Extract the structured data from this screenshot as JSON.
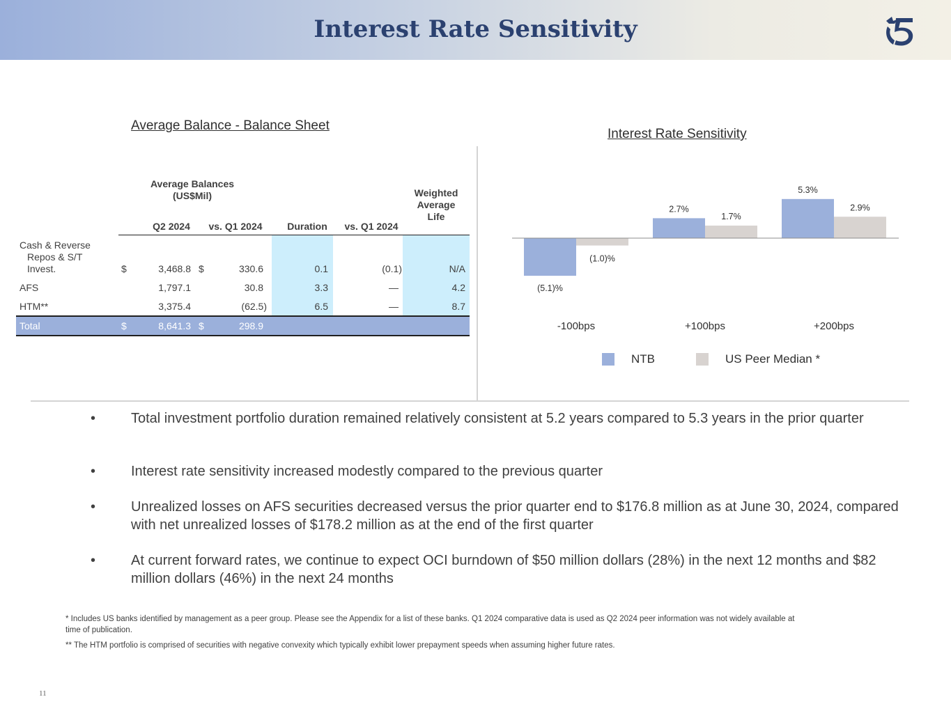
{
  "header": {
    "title": "Interest Rate Sensitivity",
    "logo_icon": "bank-logo-icon"
  },
  "left_section": {
    "title": "Average Balance - Balance Sheet"
  },
  "table": {
    "header_group": "Average Balances (US$Mil)",
    "col_q2": "Q2 2024",
    "col_vs_q1": "vs. Q1 2024",
    "col_duration": "Duration",
    "col_dur_vs_q1": "vs. Q1 2024",
    "col_wal": "Weighted Average Life",
    "rows": [
      {
        "label": "Cash & Reverse Repos & S/T Invest.",
        "cur1": "$",
        "q2": "3,468.8",
        "cur2": "$",
        "vs_q1": "330.6",
        "duration": "0.1",
        "dur_vs_q1": "(0.1)",
        "wal": "N/A"
      },
      {
        "label": "AFS",
        "cur1": "",
        "q2": "1,797.1",
        "cur2": "",
        "vs_q1": "30.8",
        "duration": "3.3",
        "dur_vs_q1": "—",
        "wal": "4.2"
      },
      {
        "label": "HTM**",
        "cur1": "",
        "q2": "3,375.4",
        "cur2": "",
        "vs_q1": "(62.5)",
        "duration": "6.5",
        "dur_vs_q1": "—",
        "wal": "8.7"
      }
    ],
    "total": {
      "label": "Total",
      "cur1": "$",
      "q2": "8,641.3",
      "cur2": "$",
      "vs_q1": "298.9"
    }
  },
  "chart_data": {
    "type": "bar",
    "title": "Interest Rate Sensitivity",
    "categories": [
      "-100bps",
      "+100bps",
      "+200bps"
    ],
    "series": [
      {
        "name": "NTB",
        "values": [
          -5.1,
          2.7,
          5.3
        ],
        "labels": [
          "(5.1)%",
          "2.7%",
          "5.3%"
        ],
        "color": "#9bb0db"
      },
      {
        "name": "US Peer Median *",
        "values": [
          -1.0,
          1.7,
          2.9
        ],
        "labels": [
          "(1.0)%",
          "1.7%",
          "2.9%"
        ],
        "color": "#d8d3d0"
      }
    ],
    "ylim": [
      -6,
      6
    ],
    "xlabel": "",
    "ylabel": "",
    "legend": "bottom"
  },
  "bullets": [
    "Total investment portfolio duration remained relatively consistent at 5.2 years compared to 5.3 years in the prior quarter",
    "Interest rate sensitivity increased modestly compared to the previous quarter",
    "Unrealized losses on AFS securities decreased versus the prior quarter end to $176.8 million as at June 30, 2024, compared with net unrealized losses of $178.2 million as at the end of the first quarter",
    "At current forward rates, we continue to expect OCI burndown of $50 million dollars (28%) in the next 12 months and $82 million dollars (46%) in the next 24 months"
  ],
  "bullet_symbol": "•",
  "footnotes": [
    "* Includes US banks identified by management as a peer group. Please see the Appendix for a list of these banks. Q1 2024 comparative data is used as Q2 2024 peer information was not widely available at time of publication.",
    "** The HTM portfolio is comprised of securities with negative convexity which typically exhibit lower prepayment speeds when assuming higher future rates."
  ],
  "page_number": "11"
}
